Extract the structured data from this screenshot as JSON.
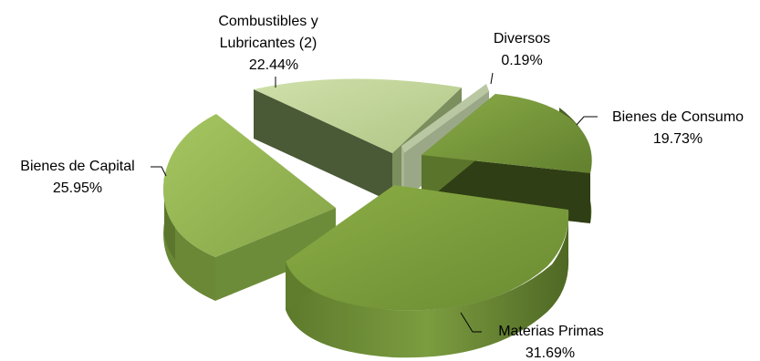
{
  "chart_data": {
    "type": "pie",
    "variant": "3d-exploded",
    "legend": "none",
    "slices": [
      {
        "label_lines": [
          "Bienes de Consumo"
        ],
        "percent_text": "19.73%",
        "value": 19.73,
        "top_color": "#76923c",
        "side_color": "#3d4e1e"
      },
      {
        "label_lines": [
          "Materias Primas"
        ],
        "percent_text": "31.69%",
        "value": 31.69,
        "top_color": "#7a9a3a",
        "side_color": "#55702a"
      },
      {
        "label_lines": [
          "Bienes de Capital"
        ],
        "percent_text": "25.95%",
        "value": 25.95,
        "top_color": "#9bbb59",
        "side_color": "#6d8a39"
      },
      {
        "label_lines": [
          "Combustibles y",
          "Lubricantes (2)"
        ],
        "percent_text": "22.44%",
        "value": 22.44,
        "top_color": "#c3d69b",
        "side_color": "#4f5e3b"
      },
      {
        "label_lines": [
          "Diversos"
        ],
        "percent_text": "0.19%",
        "value": 0.19,
        "top_color": "#b6c6a0",
        "side_color": "#8fa07a"
      }
    ]
  }
}
